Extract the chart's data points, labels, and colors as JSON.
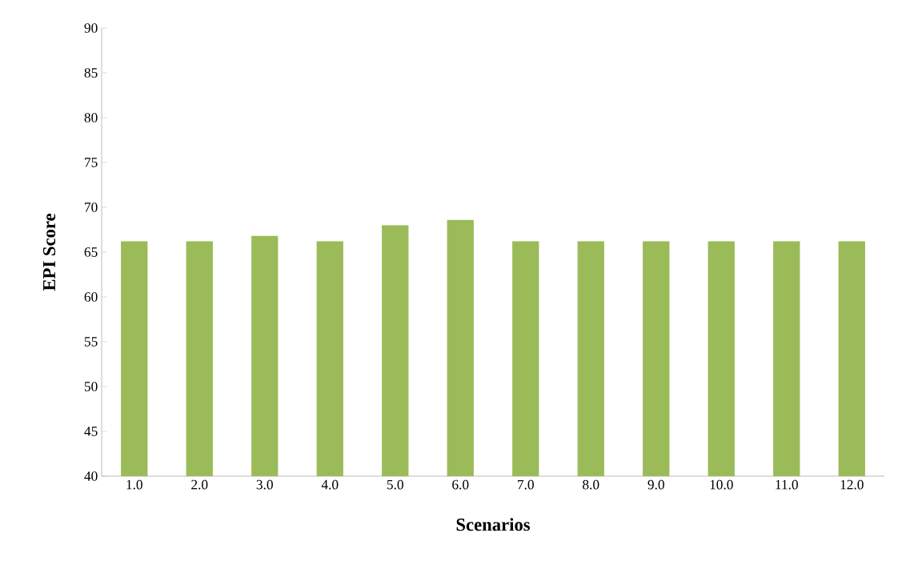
{
  "chart_data": {
    "type": "bar",
    "xlabel": "Scenarios",
    "ylabel": "EPI Score",
    "categories": [
      "1.0",
      "2.0",
      "3.0",
      "4.0",
      "5.0",
      "6.0",
      "7.0",
      "8.0",
      "9.0",
      "10.0",
      "11.0",
      "12.0"
    ],
    "values": [
      66.2,
      66.2,
      66.8,
      66.2,
      68.0,
      68.6,
      66.2,
      66.2,
      66.2,
      66.2,
      66.2,
      66.2
    ],
    "color": "#9bbb59",
    "ylim": [
      40,
      90
    ],
    "yticks": [
      40,
      45,
      50,
      55,
      60,
      65,
      70,
      75,
      80,
      85,
      90
    ]
  }
}
